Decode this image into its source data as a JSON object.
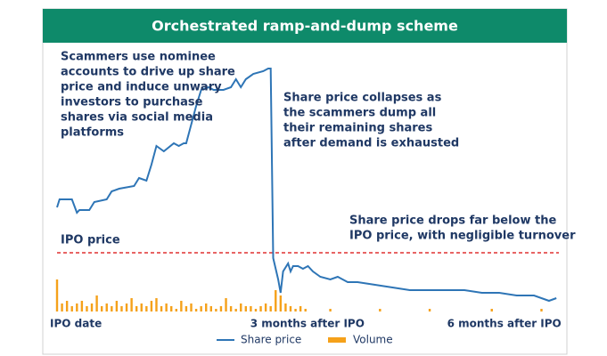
{
  "chart_data": {
    "type": "line-volume",
    "title": "Orchestrated ramp-and-dump scheme",
    "xlim": [
      0,
      202
    ],
    "xticks": [
      {
        "value": 0,
        "label": "IPO date"
      },
      {
        "value": 90,
        "label": "3 months after IPO"
      },
      {
        "value": 180,
        "label": "6 months after IPO"
      }
    ],
    "ylim": [
      0,
      100
    ],
    "reference_line": {
      "value": 22,
      "label": "IPO price",
      "color": "#e03030"
    },
    "annotations": [
      {
        "lines": [
          "Scammers use nominee",
          "accounts to drive up share",
          "price and induce unwary",
          "investors to purchase",
          "shares via social media",
          "platforms"
        ]
      },
      {
        "lines": [
          "Share price collapses as",
          "the scammers dump all",
          "their remaining shares",
          "after demand is exhausted"
        ]
      },
      {
        "lines": [
          "Share price drops far below the",
          "IPO price, with negligible turnover"
        ]
      }
    ],
    "series": [
      {
        "name": "Share price",
        "color": "#2e75b6",
        "x": [
          0,
          1,
          6,
          8,
          9,
          13,
          15,
          20,
          22,
          25,
          31,
          33,
          36,
          38,
          40,
          43,
          47,
          49,
          51,
          52,
          54,
          56,
          58,
          61,
          63,
          67,
          70,
          72,
          74,
          76,
          79,
          83,
          85,
          86,
          87,
          89,
          90,
          91,
          93,
          94,
          95,
          97,
          99,
          101,
          103,
          106,
          110,
          113,
          117,
          121,
          128,
          135,
          142,
          149,
          156,
          164,
          171,
          178,
          185,
          192,
          198,
          201
        ],
        "values": [
          39,
          42,
          42,
          37,
          38,
          38,
          41,
          42,
          45,
          46,
          47,
          50,
          49,
          55,
          62,
          60,
          63,
          62,
          63,
          63,
          70,
          77,
          83,
          84,
          83,
          83,
          84,
          87,
          84,
          87,
          89,
          90,
          91,
          91,
          20,
          12,
          7,
          15,
          18,
          15,
          17,
          17,
          16,
          17,
          15,
          13,
          12,
          13,
          11,
          11,
          10,
          9,
          8,
          8,
          8,
          8,
          7,
          7,
          6,
          6,
          4,
          5
        ]
      },
      {
        "name": "Volume",
        "color": "#f5a11a",
        "x": [
          0,
          2,
          4,
          6,
          8,
          10,
          12,
          14,
          16,
          18,
          20,
          22,
          24,
          26,
          28,
          30,
          32,
          34,
          36,
          38,
          40,
          42,
          44,
          46,
          48,
          50,
          52,
          54,
          56,
          58,
          60,
          62,
          64,
          66,
          68,
          70,
          72,
          74,
          76,
          78,
          80,
          82,
          84,
          86,
          88,
          90,
          92,
          94,
          96,
          98,
          100,
          110,
          130,
          150,
          175,
          195
        ],
        "values": [
          12,
          3,
          4,
          2,
          3,
          4,
          2,
          3,
          6,
          2,
          3,
          2,
          4,
          2,
          3,
          5,
          2,
          3,
          2,
          4,
          5,
          2,
          3,
          2,
          1,
          4,
          2,
          3,
          1,
          2,
          3,
          2,
          1,
          2,
          5,
          2,
          1,
          3,
          2,
          2,
          1,
          2,
          3,
          2,
          8,
          6,
          3,
          2,
          1,
          2,
          1,
          1,
          1,
          1,
          1,
          1
        ]
      }
    ]
  }
}
